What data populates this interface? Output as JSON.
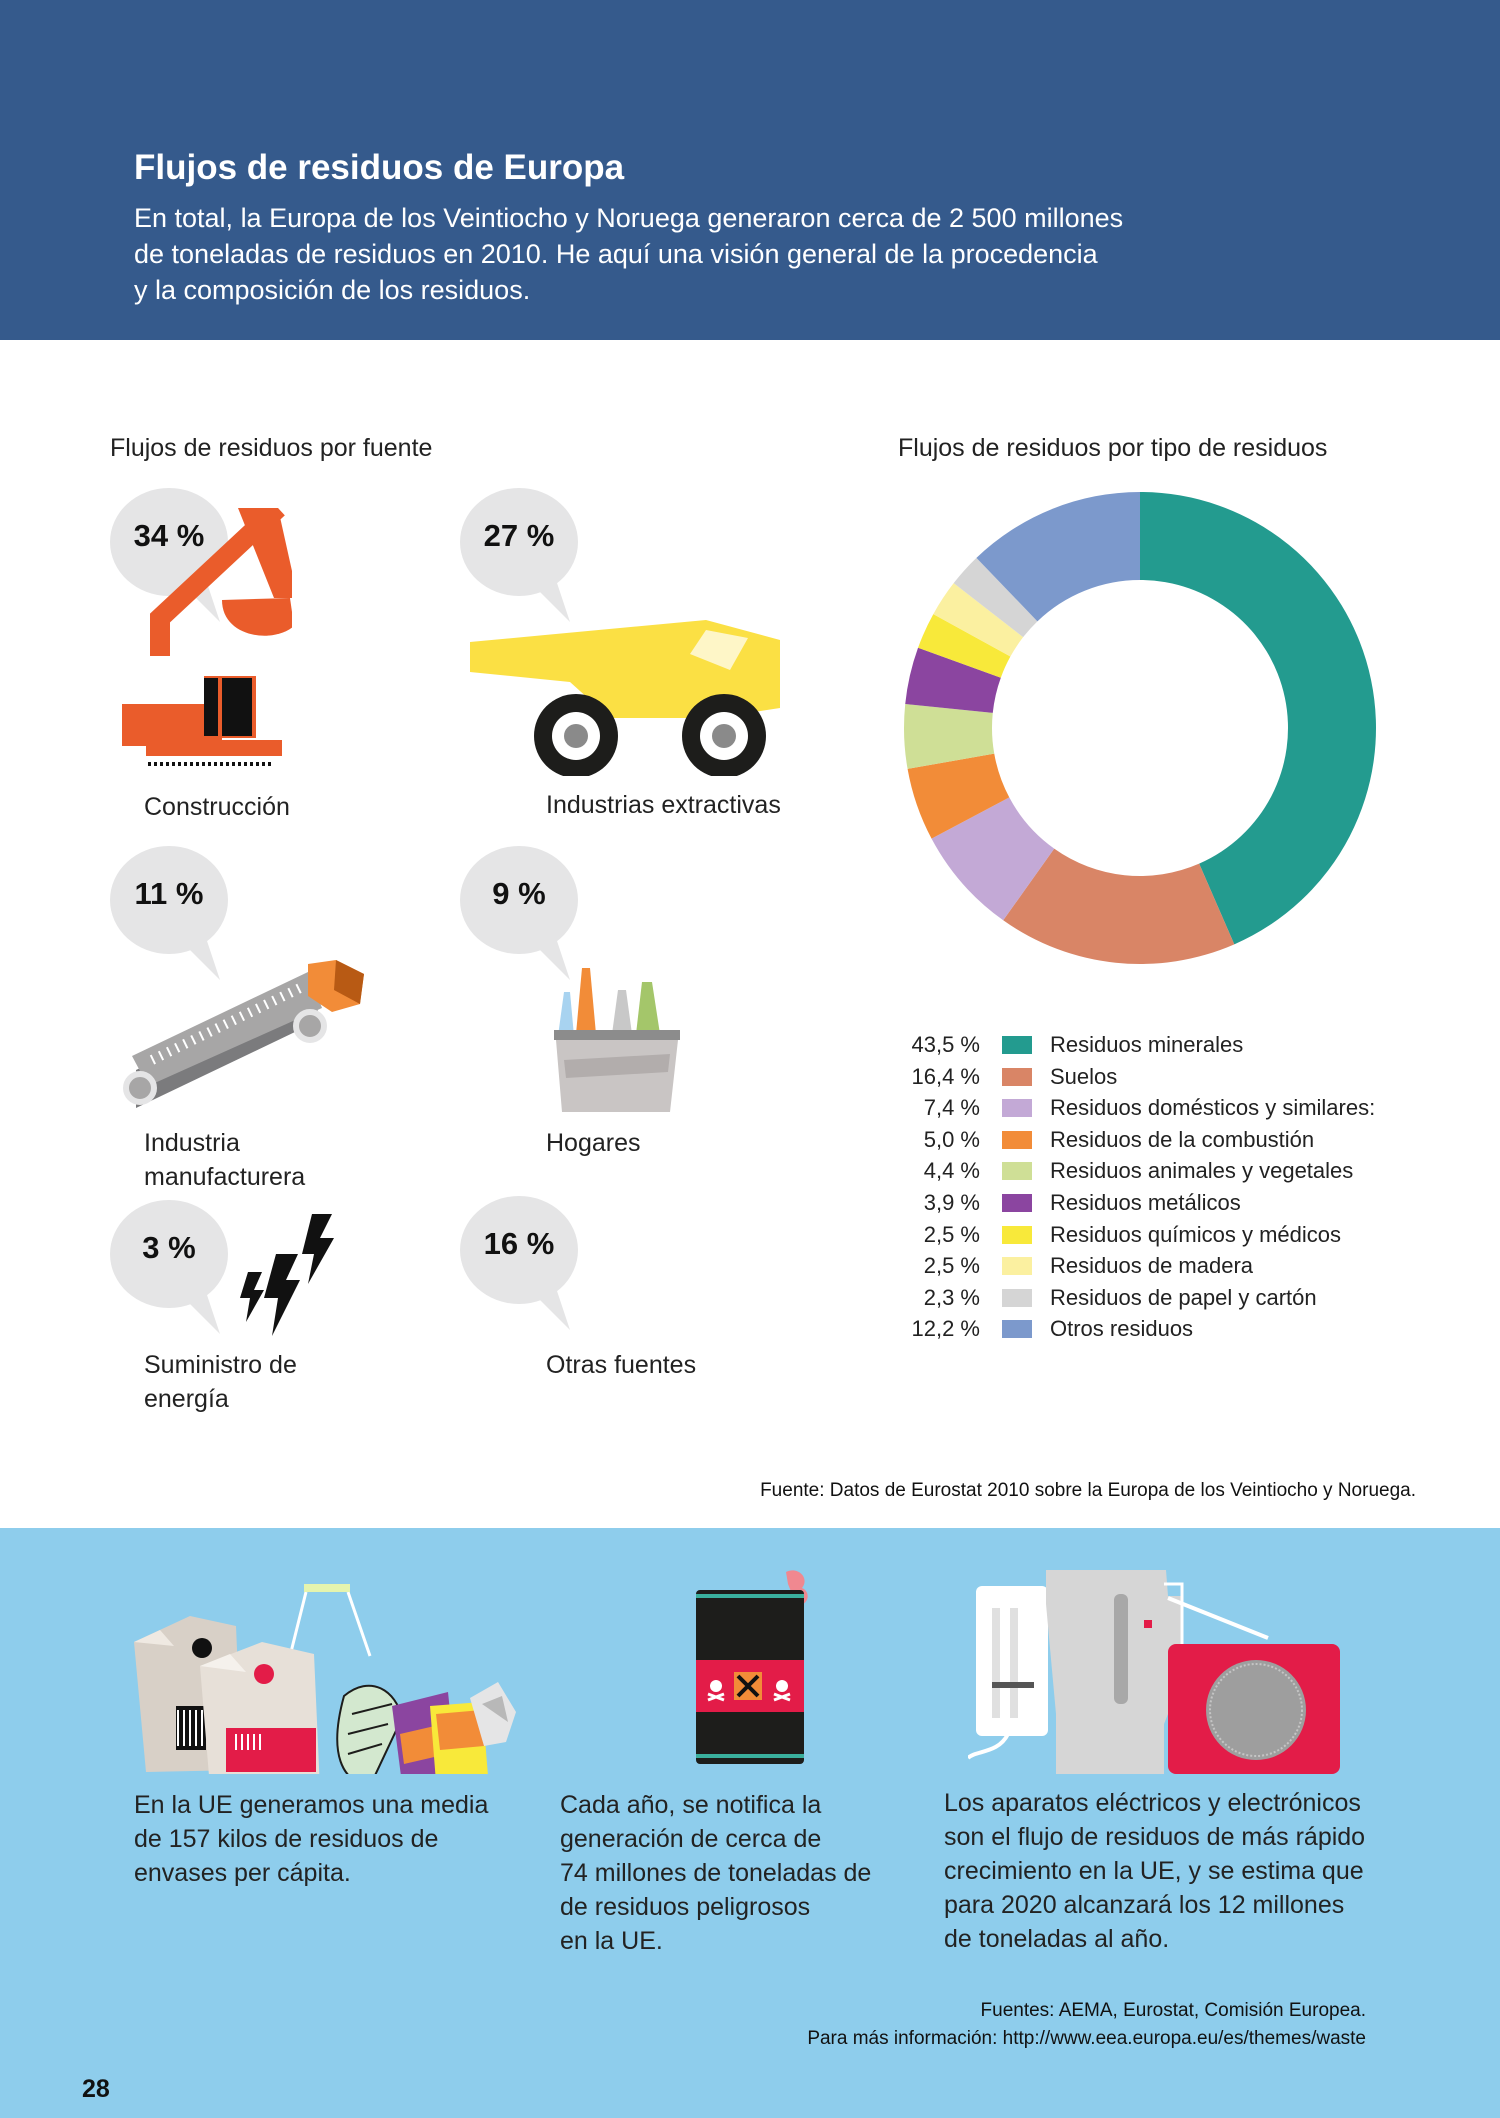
{
  "header": {
    "title": "Flujos de residuos de Europa",
    "intro_lines": [
      "En total, la Europa de los Veintiocho y Noruega generaron cerca de 2 500 millones",
      "de toneladas de residuos en 2010. He aquí una visión general de la procedencia",
      "y la composición de los residuos."
    ]
  },
  "by_source": {
    "title": "Flujos de residuos por fuente",
    "items": [
      {
        "pct": "34 %",
        "label_lines": [
          "Construcción"
        ],
        "icon": "excavator-icon"
      },
      {
        "pct": "27 %",
        "label_lines": [
          "Industrias extractivas"
        ],
        "icon": "dump-truck-icon"
      },
      {
        "pct": "11 %",
        "label_lines": [
          "Industria",
          "manufacturera"
        ],
        "icon": "conveyor-belt-icon"
      },
      {
        "pct": "9 %",
        "label_lines": [
          "Hogares"
        ],
        "icon": "household-bottles-icon"
      },
      {
        "pct": "3 %",
        "label_lines": [
          "Suministro de",
          "energía"
        ],
        "icon": "lightning-bolts-icon"
      },
      {
        "pct": "16 %",
        "label_lines": [
          "Otras fuentes"
        ],
        "icon": ""
      }
    ]
  },
  "chart_data": {
    "type": "pie",
    "title": "Flujos de residuos por tipo de residuos",
    "donut": true,
    "categories": [
      "Residuos minerales",
      "Suelos",
      "Residuos domésticos y similares:",
      "Residuos de la combustión",
      "Residuos animales y vegetales",
      "Residuos metálicos",
      "Residuos químicos y médicos",
      "Residuos de madera",
      "Residuos de papel y cartón",
      "Otros residuos"
    ],
    "values": [
      43.5,
      16.4,
      7.4,
      5.0,
      4.4,
      3.9,
      2.5,
      2.5,
      2.3,
      12.2
    ],
    "value_labels": [
      "43,5 %",
      "16,4 %",
      "7,4 %",
      "5,0 %",
      "4,4 %",
      "3,9 %",
      "2,5 %",
      "2,5 %",
      "2,3 %",
      "12,2 %"
    ],
    "colors": [
      "#239b8f",
      "#d98566",
      "#c3a9d6",
      "#f28c38",
      "#cfdf96",
      "#8b45a0",
      "#f8e93a",
      "#fbf0a0",
      "#d5d5d5",
      "#7c99cc"
    ],
    "legend_position": "bottom"
  },
  "source_note": "Fuente: Datos de Eurostat 2010 sobre la Europa de los Veintiocho y Noruega.",
  "facts": [
    {
      "lines": [
        "En la UE generamos una media",
        "de 157 kilos de residuos de",
        "envases per cápita."
      ],
      "icon": "packaging-waste-icon"
    },
    {
      "lines": [
        "Cada año, se notifica la",
        "generación de cerca de",
        "74 millones de toneladas de",
        "de residuos peligrosos",
        "en la UE."
      ],
      "icon": "hazardous-barrel-icon"
    },
    {
      "lines": [
        "Los aparatos eléctricos y electrónicos",
        "son el flujo de residuos de más rápido",
        "crecimiento en la UE, y se estima que",
        "para 2020 alcanzará los 12 millones",
        "de toneladas al año."
      ],
      "icon": "electronic-appliances-icon"
    }
  ],
  "sources": {
    "line1": "Fuentes: AEMA, Eurostat, Comisión Europea.",
    "line2": "Para más información: http://www.eea.europa.eu/es/themes/waste"
  },
  "page_number": "28",
  "colors": {
    "header_blue": "#355a8c",
    "footer_blue": "#8ecdec",
    "bubble_gray": "#e5e5e6"
  }
}
